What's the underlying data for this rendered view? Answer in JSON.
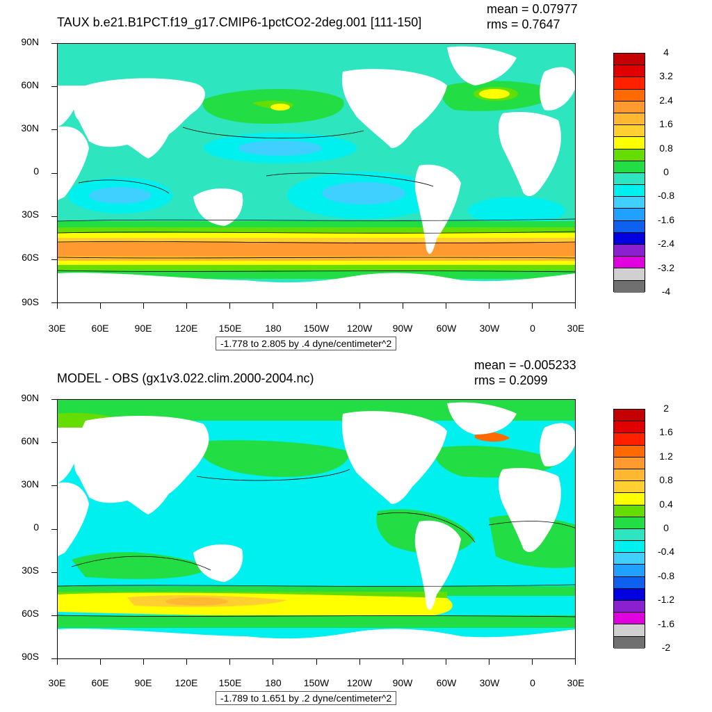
{
  "panels": [
    {
      "title": "TAUX b.e21.B1PCT.f19_g17.CMIP6-1pctCO2-2deg.001 [111-150]",
      "mean": "mean = 0.07977",
      "rms": "rms = 0.7647",
      "range_text": "-1.778 to 2.805 by .4 dyne/centimeter^2",
      "colorbar_labels": [
        "4",
        "3.2",
        "2.4",
        "1.6",
        "0.8",
        "0",
        "-0.8",
        "-1.6",
        "-2.4",
        "-3.2",
        "-4"
      ],
      "colorbar_colors": [
        "#c40000",
        "#e00000",
        "#ff2000",
        "#ff6a00",
        "#ff9a30",
        "#ffb830",
        "#ffd030",
        "#ffff00",
        "#66dd00",
        "#22dd44",
        "#2de6c0",
        "#00f0f0",
        "#40d0ff",
        "#20a0ff",
        "#1060f0",
        "#0000e0",
        "#8a20d0",
        "#e000e0",
        "#d0d0d0",
        "#707070"
      ]
    },
    {
      "title": "MODEL - OBS (gx1v3.022.clim.2000-2004.nc)",
      "mean": "mean = -0.005233",
      "rms": "rms = 0.2099",
      "range_text": "-1.789 to 1.651 by .2 dyne/centimeter^2",
      "colorbar_labels": [
        "2",
        "1.6",
        "1.2",
        "0.8",
        "0.4",
        "0",
        "-0.4",
        "-0.8",
        "-1.2",
        "-1.6",
        "-2"
      ],
      "colorbar_colors": [
        "#c40000",
        "#e00000",
        "#ff2000",
        "#ff6a00",
        "#ff9a30",
        "#ffb830",
        "#ffd030",
        "#ffff00",
        "#66dd00",
        "#22dd44",
        "#2de6c0",
        "#00f0f0",
        "#40d0ff",
        "#20a0ff",
        "#1060f0",
        "#0000e0",
        "#8a20d0",
        "#e000e0",
        "#d0d0d0",
        "#707070"
      ]
    }
  ],
  "lat_labels": [
    "90N",
    "60N",
    "30N",
    "0",
    "30S",
    "60S",
    "90S"
  ],
  "lon_labels": [
    "30E",
    "60E",
    "90E",
    "120E",
    "150E",
    "180",
    "150W",
    "120W",
    "90W",
    "60W",
    "30W",
    "0",
    "30E"
  ]
}
